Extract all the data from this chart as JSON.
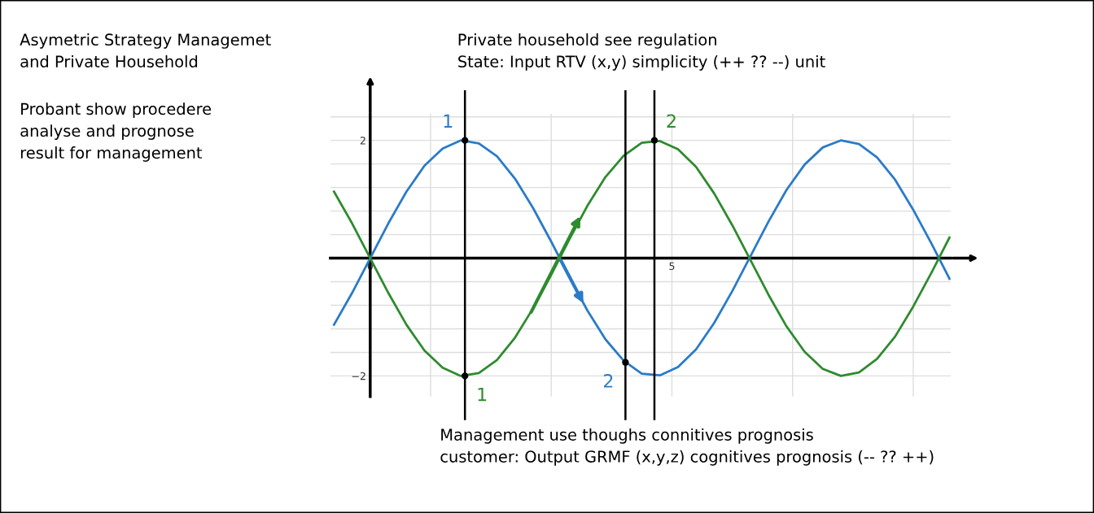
{
  "chart_data": {
    "type": "line",
    "title": "Asymetric Strategy Managemet\nand Private Household",
    "x": [
      -0.6,
      -0.3,
      0,
      0.3,
      0.6,
      0.9,
      1.2,
      1.5,
      1.8,
      2.1,
      2.4,
      2.7,
      3.0,
      3.3,
      3.6,
      3.9,
      4.2,
      4.5,
      4.8,
      5.1,
      5.4,
      5.7,
      6.0,
      6.3,
      6.6,
      6.9,
      7.2,
      7.5,
      7.8,
      8.1,
      8.4,
      8.7,
      9.0,
      9.3,
      9.6
    ],
    "series": [
      {
        "color": "#2a7bc8",
        "values": [
          -1.13,
          -0.59,
          0,
          0.59,
          1.13,
          1.57,
          1.86,
          2.0,
          1.95,
          1.73,
          1.35,
          0.85,
          0.28,
          -0.32,
          -0.89,
          -1.38,
          -1.74,
          -1.96,
          -1.99,
          -1.85,
          -1.55,
          -1.1,
          -0.56,
          0.03,
          0.62,
          1.16,
          1.59,
          1.88,
          2.0,
          1.94,
          1.71,
          1.33,
          0.82,
          0.25,
          -0.35
        ]
      },
      {
        "color": "#2e8b2e",
        "values": [
          1.13,
          0.59,
          0,
          -0.59,
          -1.13,
          -1.57,
          -1.86,
          -2.0,
          -1.95,
          -1.73,
          -1.35,
          -0.85,
          -0.28,
          0.32,
          0.89,
          1.38,
          1.74,
          1.96,
          1.99,
          1.85,
          1.55,
          1.1,
          0.56,
          -0.03,
          -0.62,
          -1.16,
          -1.59,
          -1.88,
          -2.0,
          -1.94,
          -1.71,
          -1.33,
          -0.82,
          -0.25,
          0.35
        ]
      }
    ],
    "xlim": [
      -0.66,
      9.62
    ],
    "ylim": [
      -2.35,
      2.45
    ],
    "xticks": [
      0,
      {
        "value": 1,
        "label": null
      },
      {
        "value": 3,
        "label": null
      },
      5,
      {
        "value": 7,
        "label": null
      },
      {
        "value": 9,
        "label": null
      }
    ],
    "yticks": [
      {
        "value": -2,
        "label": "−2"
      },
      {
        "value": -1.6,
        "label": null
      },
      {
        "value": -1.2,
        "label": null
      },
      {
        "value": -0.8,
        "label": null
      },
      {
        "value": -0.4,
        "label": null
      },
      {
        "value": 0.4,
        "label": null
      },
      {
        "value": 0.8,
        "label": null
      },
      {
        "value": 1.2,
        "label": null
      },
      {
        "value": 1.6,
        "label": null
      },
      2,
      {
        "value": 2.4,
        "label": null
      }
    ],
    "grid": true,
    "ref_lines": [
      {
        "axis": "x",
        "value": 1.57,
        "color": "#000000"
      },
      {
        "axis": "x",
        "value": 4.23,
        "color": "#000000"
      },
      {
        "axis": "x",
        "value": 4.71,
        "color": "#000000"
      }
    ],
    "annotations": [
      "Probant show procedere\nanalyse and prognose\nresult for management",
      "Private household see regulation\nState: Input RTV (x,y) simplicity (++ ?? --) unit",
      "Management use thoughs connitives prognosis\ncustomer: Output GRMF (x,y,z) cognitives prognosis (-- ?? ++)",
      {
        "text": "1",
        "x": 1.57,
        "y": 2
      },
      {
        "text": "2",
        "x": 4.23,
        "y": -1.77
      },
      {
        "text": "1",
        "x": 1.57,
        "y": -2
      },
      {
        "text": "2",
        "x": 4.71,
        "y": 2
      }
    ]
  }
}
